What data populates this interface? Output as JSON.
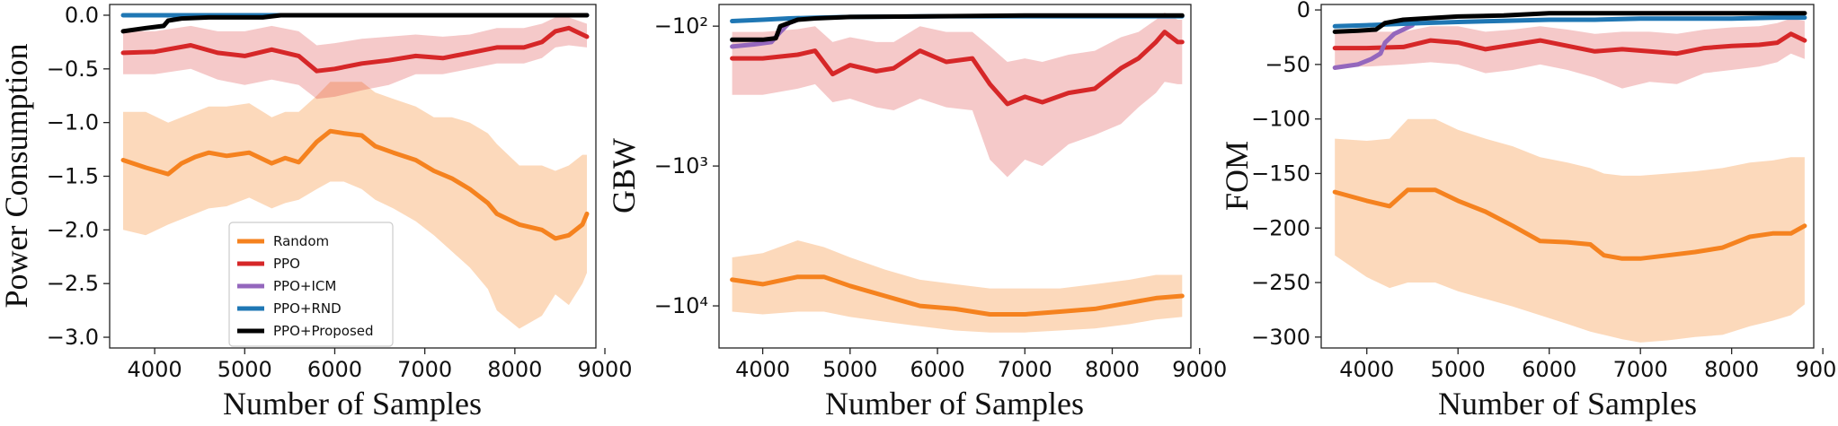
{
  "colors": {
    "Random": "#f5821f",
    "PPO": "#d62728",
    "PPO+ICM": "#9467bd",
    "PPO+RND": "#1f77b4",
    "PPO+Proposed": "#000000"
  },
  "legend": [
    "Random",
    "PPO",
    "PPO+ICM",
    "PPO+RND",
    "PPO+Proposed"
  ],
  "chart_data": [
    {
      "type": "line",
      "title": "",
      "xlabel": "Number of Samples",
      "ylabel": "Power Consumption",
      "xlim": [
        3500,
        8900
      ],
      "ylim": [
        -3.1,
        0.1
      ],
      "yscale": "linear",
      "xticks": [
        4000,
        5000,
        6000,
        7000,
        8000,
        9000
      ],
      "yticks": [
        0.0,
        -0.5,
        -1.0,
        -1.5,
        -2.0,
        -2.5,
        -3.0
      ],
      "ytick_labels": [
        "0.0",
        "−0.5",
        "−1.0",
        "−1.5",
        "−2.0",
        "−2.5",
        "−3.0"
      ],
      "legend_position": "lower-center",
      "series": [
        {
          "name": "Random",
          "x": [
            3650,
            3900,
            4150,
            4300,
            4450,
            4600,
            4800,
            5050,
            5300,
            5450,
            5600,
            5800,
            5950,
            6100,
            6300,
            6450,
            6650,
            6900,
            7100,
            7300,
            7500,
            7700,
            7800,
            8050,
            8300,
            8450,
            8600,
            8750,
            8800
          ],
          "y": [
            -1.35,
            -1.42,
            -1.48,
            -1.38,
            -1.32,
            -1.28,
            -1.31,
            -1.28,
            -1.38,
            -1.33,
            -1.37,
            -1.18,
            -1.08,
            -1.1,
            -1.12,
            -1.22,
            -1.28,
            -1.35,
            -1.45,
            -1.52,
            -1.62,
            -1.75,
            -1.85,
            -1.95,
            -2.0,
            -2.08,
            -2.05,
            -1.95,
            -1.85
          ],
          "lower": [
            -2.0,
            -2.05,
            -1.95,
            -1.9,
            -1.85,
            -1.8,
            -1.78,
            -1.7,
            -1.8,
            -1.75,
            -1.72,
            -1.62,
            -1.55,
            -1.55,
            -1.62,
            -1.72,
            -1.8,
            -1.92,
            -2.05,
            -2.2,
            -2.35,
            -2.55,
            -2.75,
            -2.92,
            -2.8,
            -2.6,
            -2.7,
            -2.5,
            -2.4
          ],
          "upper": [
            -0.9,
            -0.9,
            -1.0,
            -0.95,
            -0.9,
            -0.85,
            -0.85,
            -0.82,
            -0.95,
            -0.9,
            -0.9,
            -0.75,
            -0.62,
            -0.62,
            -0.62,
            -0.72,
            -0.78,
            -0.85,
            -0.95,
            -0.95,
            -1.0,
            -1.1,
            -1.2,
            -1.4,
            -1.4,
            -1.45,
            -1.4,
            -1.3,
            -1.3
          ]
        },
        {
          "name": "PPO",
          "x": [
            3650,
            4000,
            4400,
            4700,
            5000,
            5300,
            5600,
            5800,
            6000,
            6300,
            6600,
            6900,
            7200,
            7500,
            7800,
            8100,
            8300,
            8450,
            8600,
            8800
          ],
          "y": [
            -0.35,
            -0.34,
            -0.28,
            -0.35,
            -0.38,
            -0.32,
            -0.38,
            -0.52,
            -0.5,
            -0.45,
            -0.42,
            -0.38,
            -0.4,
            -0.35,
            -0.3,
            -0.3,
            -0.25,
            -0.15,
            -0.12,
            -0.2
          ],
          "lower": [
            -0.55,
            -0.55,
            -0.5,
            -0.6,
            -0.65,
            -0.6,
            -0.65,
            -0.78,
            -0.76,
            -0.7,
            -0.65,
            -0.55,
            -0.55,
            -0.5,
            -0.45,
            -0.45,
            -0.4,
            -0.3,
            -0.28,
            -0.3
          ],
          "upper": [
            -0.15,
            -0.15,
            -0.1,
            -0.15,
            -0.15,
            -0.1,
            -0.15,
            -0.28,
            -0.26,
            -0.22,
            -0.2,
            -0.18,
            -0.2,
            -0.18,
            -0.12,
            -0.12,
            -0.08,
            -0.02,
            -0.02,
            -0.08
          ]
        },
        {
          "name": "PPO+RND",
          "x": [
            3650,
            4200,
            5000,
            5400,
            6000,
            7000,
            8000,
            8800
          ],
          "y": [
            0.0,
            0.0,
            0.0,
            0.0,
            0.0,
            0.0,
            0.0,
            0.0
          ]
        },
        {
          "name": "PPO+Proposed",
          "x": [
            3650,
            3900,
            4100,
            4150,
            4300,
            4600,
            5200,
            5400,
            6000,
            7000,
            8000,
            8800
          ],
          "y": [
            -0.15,
            -0.12,
            -0.1,
            -0.05,
            -0.03,
            -0.02,
            -0.02,
            0.0,
            0.0,
            0.0,
            0.0,
            0.0
          ]
        }
      ]
    },
    {
      "type": "line",
      "title": "",
      "xlabel": "Number of Samples",
      "ylabel": "GBW",
      "xlim": [
        3500,
        8900
      ],
      "ylim": [
        -20000,
        -70
      ],
      "yscale": "symlog",
      "xticks": [
        4000,
        5000,
        6000,
        7000,
        8000,
        9000
      ],
      "yticks": [
        -100,
        -1000,
        -10000
      ],
      "ytick_labels": [
        "−10²",
        "−10³",
        "−10⁴"
      ],
      "legend_position": "none",
      "series": [
        {
          "name": "Random",
          "x": [
            3650,
            4000,
            4400,
            4700,
            5000,
            5400,
            5800,
            6200,
            6600,
            7000,
            7400,
            7800,
            8200,
            8500,
            8800
          ],
          "y": [
            -6500,
            -7000,
            -6200,
            -6200,
            -7200,
            -8500,
            -10000,
            -10500,
            -11500,
            -11500,
            -11000,
            -10500,
            -9500,
            -8800,
            -8500
          ],
          "lower": [
            -11000,
            -11500,
            -11000,
            -11000,
            -12000,
            -13000,
            -14000,
            -15000,
            -15500,
            -15500,
            -15000,
            -14500,
            -13500,
            -12500,
            -12000
          ],
          "upper": [
            -4500,
            -4200,
            -3400,
            -3800,
            -4500,
            -5500,
            -6500,
            -7000,
            -7500,
            -7500,
            -7500,
            -7000,
            -6500,
            -6000,
            -6000
          ]
        },
        {
          "name": "PPO",
          "x": [
            3650,
            4000,
            4400,
            4600,
            4800,
            5000,
            5300,
            5500,
            5800,
            6100,
            6400,
            6600,
            6800,
            7000,
            7200,
            7500,
            7800,
            8100,
            8300,
            8500,
            8600,
            8750,
            8800
          ],
          "y": [
            -170,
            -170,
            -160,
            -150,
            -220,
            -190,
            -210,
            -200,
            -150,
            -180,
            -170,
            -260,
            -360,
            -320,
            -350,
            -300,
            -280,
            -200,
            -170,
            -130,
            -110,
            -130,
            -130
          ],
          "lower": [
            -310,
            -310,
            -280,
            -260,
            -350,
            -330,
            -380,
            -400,
            -330,
            -380,
            -400,
            -900,
            -1200,
            -900,
            -1000,
            -700,
            -600,
            -500,
            -380,
            -300,
            -250,
            -260,
            -260
          ],
          "upper": [
            -110,
            -110,
            -105,
            -100,
            -130,
            -120,
            -130,
            -130,
            -100,
            -110,
            -110,
            -140,
            -180,
            -170,
            -180,
            -160,
            -150,
            -120,
            -110,
            -90,
            -80,
            -90,
            -90
          ]
        },
        {
          "name": "PPO+ICM",
          "x": [
            3650,
            3900,
            4100,
            4200,
            4300,
            4400
          ],
          "y": [
            -140,
            -135,
            -130,
            -110,
            -95,
            -90
          ]
        },
        {
          "name": "PPO+RND",
          "x": [
            3650,
            4000,
            4300,
            4600,
            5000,
            6000,
            7000,
            8000,
            8800
          ],
          "y": [
            -92,
            -90,
            -88,
            -87,
            -86,
            -85,
            -85,
            -85,
            -85
          ]
        },
        {
          "name": "PPO+Proposed",
          "x": [
            3650,
            4000,
            4150,
            4200,
            4400,
            4600,
            5000,
            6000,
            7000,
            8000,
            8800
          ],
          "y": [
            -125,
            -125,
            -122,
            -100,
            -90,
            -88,
            -86,
            -85,
            -84,
            -84,
            -84
          ]
        }
      ]
    },
    {
      "type": "line",
      "title": "",
      "xlabel": "Number of Samples",
      "ylabel": "FOM",
      "xlim": [
        3500,
        8900
      ],
      "ylim": [
        -310,
        5
      ],
      "yscale": "linear",
      "xticks": [
        4000,
        5000,
        6000,
        7000,
        8000,
        9000
      ],
      "yticks": [
        0,
        -50,
        -100,
        -150,
        -200,
        -250,
        -300
      ],
      "ytick_labels": [
        "0",
        "−50",
        "−100",
        "−150",
        "−200",
        "−250",
        "−300"
      ],
      "legend_position": "none",
      "series": [
        {
          "name": "Random",
          "x": [
            3650,
            4000,
            4250,
            4450,
            4750,
            5000,
            5300,
            5600,
            5900,
            6200,
            6450,
            6600,
            6800,
            7000,
            7300,
            7600,
            7900,
            8200,
            8450,
            8650,
            8800
          ],
          "y": [
            -167,
            -175,
            -180,
            -165,
            -165,
            -175,
            -185,
            -198,
            -212,
            -213,
            -215,
            -225,
            -228,
            -228,
            -225,
            -222,
            -218,
            -208,
            -205,
            -205,
            -198
          ],
          "lower": [
            -225,
            -245,
            -255,
            -250,
            -250,
            -258,
            -265,
            -272,
            -280,
            -288,
            -295,
            -298,
            -302,
            -305,
            -303,
            -300,
            -298,
            -290,
            -285,
            -280,
            -270
          ],
          "upper": [
            -118,
            -120,
            -118,
            -100,
            -100,
            -110,
            -118,
            -125,
            -135,
            -140,
            -145,
            -150,
            -152,
            -152,
            -150,
            -148,
            -145,
            -140,
            -138,
            -135,
            -135
          ]
        },
        {
          "name": "PPO",
          "x": [
            3650,
            4000,
            4400,
            4700,
            5000,
            5300,
            5600,
            5900,
            6200,
            6500,
            6800,
            7100,
            7400,
            7700,
            8000,
            8300,
            8500,
            8650,
            8800
          ],
          "y": [
            -35,
            -35,
            -34,
            -28,
            -30,
            -36,
            -32,
            -28,
            -33,
            -38,
            -36,
            -38,
            -40,
            -35,
            -33,
            -32,
            -30,
            -22,
            -28
          ],
          "lower": [
            -52,
            -52,
            -50,
            -48,
            -50,
            -58,
            -55,
            -50,
            -55,
            -62,
            -72,
            -66,
            -68,
            -58,
            -55,
            -52,
            -48,
            -40,
            -45
          ],
          "upper": [
            -20,
            -20,
            -20,
            -15,
            -15,
            -20,
            -18,
            -15,
            -18,
            -22,
            -20,
            -20,
            -22,
            -18,
            -16,
            -15,
            -12,
            -8,
            -10
          ]
        },
        {
          "name": "PPO+ICM",
          "x": [
            3650,
            3900,
            4050,
            4150,
            4200,
            4300,
            4400,
            4500
          ],
          "y": [
            -53,
            -50,
            -45,
            -40,
            -30,
            -22,
            -18,
            -14
          ]
        },
        {
          "name": "PPO+RND",
          "x": [
            3650,
            4000,
            4300,
            4600,
            5000,
            5500,
            6000,
            6500,
            7000,
            7500,
            8000,
            8500,
            8800
          ],
          "y": [
            -15,
            -14,
            -13,
            -12,
            -11,
            -10,
            -9,
            -9,
            -8,
            -8,
            -8,
            -7,
            -7
          ]
        },
        {
          "name": "PPO+Proposed",
          "x": [
            3650,
            3900,
            4100,
            4200,
            4400,
            4600,
            5000,
            5500,
            6000,
            6500,
            7000,
            7500,
            8000,
            8500,
            8800
          ],
          "y": [
            -20,
            -19,
            -18,
            -12,
            -9,
            -8,
            -6,
            -5,
            -3,
            -3,
            -3,
            -3,
            -3,
            -3,
            -3
          ]
        }
      ]
    }
  ]
}
